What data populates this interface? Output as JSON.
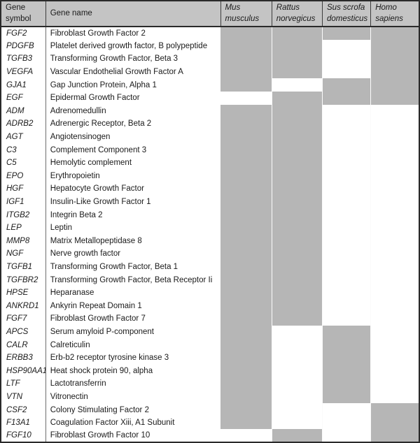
{
  "colors": {
    "present_fill": "#b6b6b6",
    "absent_fill": "#ffffff",
    "header_fill": "#c4c4c4",
    "border_dark": "#2a2a2a",
    "divider_gray": "#6e6e6e",
    "text": "#1a1a1a"
  },
  "table": {
    "headers": {
      "symbol": {
        "line1": "Gene",
        "line2": "symbol"
      },
      "name": {
        "line1": "Gene name",
        "line2": ""
      },
      "mus": {
        "line1": "Mus",
        "line2": "musculus"
      },
      "rattus": {
        "line1": "Rattus",
        "line2": "norvegicus"
      },
      "sus": {
        "line1": "Sus scrofa",
        "line2": "domesticus"
      },
      "homo": {
        "line1": "Homo",
        "line2": "sapiens"
      }
    },
    "species_keys": [
      "mus-musculus",
      "rattus-norvegicus",
      "sus-scrofa-domesticus",
      "homo-sapiens"
    ],
    "presence_legend": {
      "1": "gray-filled (reported)",
      "0": "white (not reported)"
    },
    "rows": [
      {
        "symbol": "FGF2",
        "name": "Fibroblast Growth Factor 2",
        "presence": [
          1,
          1,
          1,
          1
        ]
      },
      {
        "symbol": "PDGFB",
        "name": "Platelet derived growth factor, B polypeptide",
        "presence": [
          1,
          1,
          0,
          1
        ]
      },
      {
        "symbol": "TGFB3",
        "name": "Transforming Growth Factor, Beta 3",
        "presence": [
          1,
          1,
          0,
          1
        ]
      },
      {
        "symbol": "VEGFA",
        "name": "Vascular Endothelial Growth Factor A",
        "presence": [
          1,
          1,
          0,
          1
        ]
      },
      {
        "symbol": "GJA1",
        "name": "Gap Junction Protein, Alpha 1",
        "presence": [
          1,
          0,
          1,
          1
        ]
      },
      {
        "symbol": "EGF",
        "name": "Epidermal Growth Factor",
        "presence": [
          0,
          1,
          1,
          1
        ]
      },
      {
        "symbol": "ADM",
        "name": "Adrenomedullin",
        "presence": [
          1,
          1,
          0,
          0
        ]
      },
      {
        "symbol": "ADRB2",
        "name": "Adrenergic Receptor, Beta 2",
        "presence": [
          1,
          1,
          0,
          0
        ]
      },
      {
        "symbol": "AGT",
        "name": "Angiotensinogen",
        "presence": [
          1,
          1,
          0,
          0
        ]
      },
      {
        "symbol": "C3",
        "name": "Complement Component 3",
        "presence": [
          1,
          1,
          0,
          0
        ]
      },
      {
        "symbol": "C5",
        "name": "Hemolytic complement",
        "presence": [
          1,
          1,
          0,
          0
        ]
      },
      {
        "symbol": "EPO",
        "name": "Erythropoietin",
        "presence": [
          1,
          1,
          0,
          0
        ]
      },
      {
        "symbol": "HGF",
        "name": "Hepatocyte Growth Factor",
        "presence": [
          1,
          1,
          0,
          0
        ]
      },
      {
        "symbol": "IGF1",
        "name": "Insulin-Like Growth Factor 1",
        "presence": [
          1,
          1,
          0,
          0
        ]
      },
      {
        "symbol": "ITGB2",
        "name": "Integrin Beta 2",
        "presence": [
          1,
          1,
          0,
          0
        ]
      },
      {
        "symbol": "LEP",
        "name": "Leptin",
        "presence": [
          1,
          1,
          0,
          0
        ]
      },
      {
        "symbol": "MMP8",
        "name": "Matrix Metallopeptidase 8",
        "presence": [
          1,
          1,
          0,
          0
        ]
      },
      {
        "symbol": "NGF",
        "name": "Nerve growth factor",
        "presence": [
          1,
          1,
          0,
          0
        ]
      },
      {
        "symbol": "TGFB1",
        "name": "Transforming Growth Factor, Beta 1",
        "presence": [
          1,
          1,
          0,
          0
        ]
      },
      {
        "symbol": "TGFBR2",
        "name": "Transforming Growth Factor, Beta Receptor Ii",
        "presence": [
          1,
          1,
          0,
          0
        ]
      },
      {
        "symbol": "HPSE",
        "name": "Heparanase",
        "presence": [
          1,
          1,
          0,
          0
        ]
      },
      {
        "symbol": "ANKRD1",
        "name": "Ankyrin Repeat Domain 1",
        "presence": [
          1,
          1,
          0,
          0
        ]
      },
      {
        "symbol": "FGF7",
        "name": "Fibroblast Growth Factor 7",
        "presence": [
          1,
          1,
          0,
          0
        ]
      },
      {
        "symbol": "APCS",
        "name": "Serum amyloid P-component",
        "presence": [
          1,
          0,
          1,
          0
        ]
      },
      {
        "symbol": "CALR",
        "name": "Calreticulin",
        "presence": [
          1,
          0,
          1,
          0
        ]
      },
      {
        "symbol": "ERBB3",
        "name": "Erb-b2 receptor tyrosine kinase 3",
        "presence": [
          1,
          0,
          1,
          0
        ]
      },
      {
        "symbol": "HSP90AA1",
        "name": "Heat shock protein 90, alpha",
        "presence": [
          1,
          0,
          1,
          0
        ]
      },
      {
        "symbol": "LTF",
        "name": "Lactotransferrin",
        "presence": [
          1,
          0,
          1,
          0
        ]
      },
      {
        "symbol": "VTN",
        "name": "Vitronectin",
        "presence": [
          1,
          0,
          1,
          0
        ]
      },
      {
        "symbol": "CSF2",
        "name": "Colony Stimulating Factor 2",
        "presence": [
          1,
          0,
          0,
          1
        ]
      },
      {
        "symbol": "F13A1",
        "name": "Coagulation Factor Xiii, A1 Subunit",
        "presence": [
          1,
          0,
          0,
          1
        ]
      },
      {
        "symbol": "FGF10",
        "name": "Fibroblast Growth Factor 10",
        "presence": [
          0,
          1,
          0,
          1
        ]
      }
    ]
  }
}
